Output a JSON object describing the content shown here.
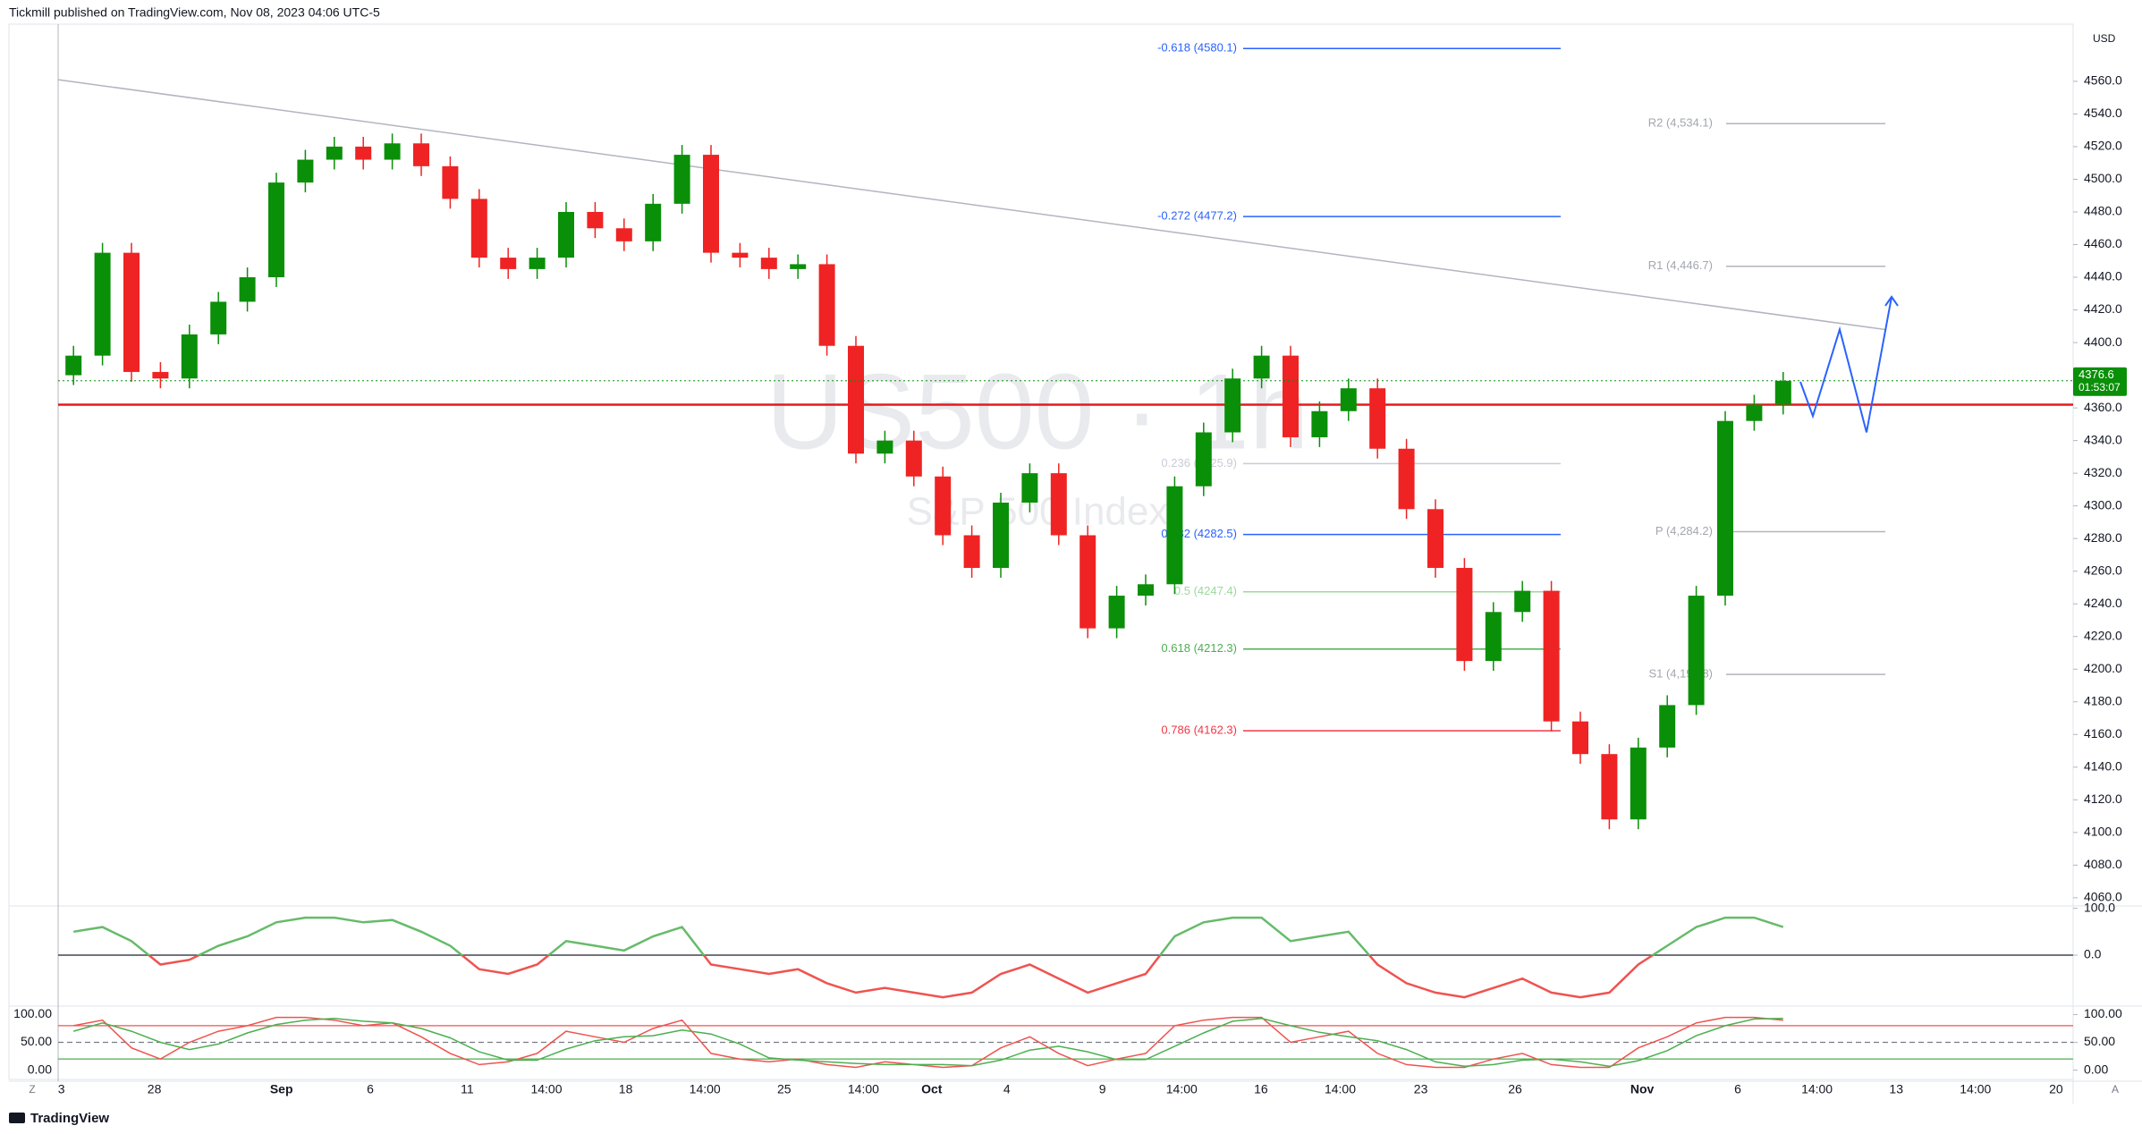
{
  "header": "Tickmill published on TradingView.com, Nov 08, 2023 04:06 UTC-5",
  "footer": {
    "brand": "TradingView",
    "z": "Z",
    "a": "A"
  },
  "chart_data": [
    {
      "type": "candlestick",
      "watermark": "US500 · 1h",
      "watermark_sub": "S&P 500 Index",
      "currency": "USD",
      "up_color": "#0a8f08",
      "down_color": "#ef2323",
      "open": [
        4380,
        4392,
        4455,
        4382,
        4378,
        4405,
        4425,
        4440,
        4498,
        4512,
        4520,
        4512,
        4522,
        4508,
        4488,
        4452,
        4445,
        4452,
        4480,
        4470,
        4462,
        4485,
        4515,
        4455,
        4452,
        4445,
        4448,
        4398,
        4332,
        4340,
        4318,
        4282,
        4262,
        4302,
        4320,
        4282,
        4225,
        4245,
        4252,
        4312,
        4345,
        4378,
        4392,
        4342,
        4358,
        4372,
        4335,
        4298,
        4262,
        4205,
        4235,
        4248,
        4168,
        4148,
        4108,
        4152,
        4178,
        4245,
        4352,
        4362
      ],
      "high": [
        4398,
        4461,
        4461,
        4388,
        4411,
        4431,
        4446,
        4504,
        4518,
        4526,
        4526,
        4528,
        4528,
        4514,
        4494,
        4458,
        4458,
        4486,
        4486,
        4476,
        4491,
        4521,
        4521,
        4461,
        4458,
        4454,
        4454,
        4404,
        4346,
        4346,
        4324,
        4288,
        4308,
        4326,
        4326,
        4288,
        4251,
        4258,
        4318,
        4351,
        4384,
        4398,
        4398,
        4364,
        4378,
        4378,
        4341,
        4304,
        4268,
        4241,
        4254,
        4254,
        4174,
        4154,
        4158,
        4184,
        4251,
        4358,
        4368,
        4382
      ],
      "low": [
        4374,
        4386,
        4376,
        4372,
        4372,
        4399,
        4419,
        4434,
        4492,
        4506,
        4506,
        4506,
        4502,
        4482,
        4446,
        4439,
        4439,
        4446,
        4464,
        4456,
        4456,
        4479,
        4449,
        4446,
        4439,
        4439,
        4392,
        4326,
        4326,
        4312,
        4276,
        4256,
        4256,
        4296,
        4276,
        4219,
        4219,
        4239,
        4246,
        4306,
        4339,
        4372,
        4336,
        4336,
        4352,
        4329,
        4292,
        4256,
        4199,
        4199,
        4229,
        4162,
        4142,
        4102,
        4102,
        4146,
        4172,
        4239,
        4346,
        4356
      ],
      "close": [
        4392,
        4455,
        4382,
        4378,
        4405,
        4425,
        4440,
        4498,
        4512,
        4520,
        4512,
        4522,
        4508,
        4488,
        4452,
        4445,
        4452,
        4480,
        4470,
        4462,
        4485,
        4515,
        4455,
        4452,
        4445,
        4448,
        4398,
        4332,
        4340,
        4318,
        4282,
        4262,
        4302,
        4320,
        4282,
        4225,
        4245,
        4252,
        4312,
        4345,
        4378,
        4392,
        4342,
        4358,
        4372,
        4335,
        4298,
        4262,
        4205,
        4235,
        4248,
        4168,
        4148,
        4108,
        4152,
        4178,
        4245,
        4352,
        4362,
        4376.6
      ],
      "last_price": 4376.6,
      "countdown": "01:53:07",
      "horizontal_line": 4362,
      "trendline": [
        4561,
        4408
      ],
      "projection": [
        4376,
        4355,
        4408,
        4345,
        4428
      ],
      "fib": [
        {
          "value": 4580.1,
          "label": "-0.618 (4580.1)",
          "color": "#2962ff"
        },
        {
          "value": 4477.2,
          "label": "-0.272 (4477.2)",
          "color": "#2962ff"
        },
        {
          "value": 4325.9,
          "label": "0.236 (4325.9)",
          "color": "#c9ccd6"
        },
        {
          "value": 4282.5,
          "label": "0.382 (4282.5)",
          "color": "#2962ff"
        },
        {
          "value": 4247.4,
          "label": "0.5 (4247.4)",
          "color": "#9ed89e"
        },
        {
          "value": 4212.3,
          "label": "0.618 (4212.3)",
          "color": "#4caf50"
        },
        {
          "value": 4162.3,
          "label": "0.786 (4162.3)",
          "color": "#f23645"
        }
      ],
      "pivots": [
        {
          "value": 4534.1,
          "label": "R2 (4,534.1)"
        },
        {
          "value": 4446.7,
          "label": "R1 (4,446.7)"
        },
        {
          "value": 4284.2,
          "label": "P (4,284.2)"
        },
        {
          "value": 4196.8,
          "label": "S1 (4,196.8)"
        }
      ],
      "ylim": [
        4055,
        4595
      ],
      "yticks": [
        {
          "value": 4060,
          "label": "4060.0"
        },
        {
          "value": 4080,
          "label": "4080.0"
        },
        {
          "value": 4100,
          "label": "4100.0"
        },
        {
          "value": 4120,
          "label": "4120.0"
        },
        {
          "value": 4140,
          "label": "4140.0"
        },
        {
          "value": 4160,
          "label": "4160.0"
        },
        {
          "value": 4180,
          "label": "4180.0"
        },
        {
          "value": 4200,
          "label": "4200.0"
        },
        {
          "value": 4220,
          "label": "4220.0"
        },
        {
          "value": 4240,
          "label": "4240.0"
        },
        {
          "value": 4260,
          "label": "4260.0"
        },
        {
          "value": 4280,
          "label": "4280.0"
        },
        {
          "value": 4300,
          "label": "4300.0"
        },
        {
          "value": 4320,
          "label": "4320.0"
        },
        {
          "value": 4340,
          "label": "4340.0"
        },
        {
          "value": 4360,
          "label": "4360.0"
        },
        {
          "value": 4380,
          "label": "4380.0"
        },
        {
          "value": 4400,
          "label": "4400.0"
        },
        {
          "value": 4420,
          "label": "4420.0"
        },
        {
          "value": 4440,
          "label": "4440.0"
        },
        {
          "value": 4460,
          "label": "4460.0"
        },
        {
          "value": 4480,
          "label": "4480.0"
        },
        {
          "value": 4500,
          "label": "4500.0"
        },
        {
          "value": 4520,
          "label": "4520.0"
        },
        {
          "value": 4540,
          "label": "4540.0"
        },
        {
          "value": 4560,
          "label": "4560.0"
        }
      ],
      "grid": false,
      "xtick_labels": [
        "3",
        "28",
        "Sep",
        "6",
        "11",
        "14:00",
        "18",
        "14:00",
        "25",
        "14:00",
        "Oct",
        "4",
        "9",
        "14:00",
        "16",
        "14:00",
        "23",
        "26",
        "Nov",
        "6",
        "14:00",
        "13",
        "14:00",
        "20"
      ]
    },
    {
      "type": "line",
      "color_above": "#66bb6a",
      "color_below": "#ef5350",
      "series": [
        {
          "values": [
            50,
            60,
            30,
            -20,
            -10,
            20,
            40,
            70,
            80,
            80,
            70,
            75,
            50,
            20,
            -30,
            -40,
            -20,
            30,
            20,
            10,
            40,
            60,
            -20,
            -30,
            -40,
            -30,
            -60,
            -80,
            -70,
            -80,
            -90,
            -80,
            -40,
            -20,
            -50,
            -80,
            -60,
            -40,
            40,
            70,
            80,
            80,
            30,
            40,
            50,
            -20,
            -60,
            -80,
            -90,
            -70,
            -50,
            -80,
            -90,
            -80,
            -20,
            20,
            60,
            80,
            80,
            60
          ]
        }
      ],
      "ylim": [
        -105,
        105
      ],
      "yticks": [
        {
          "value": 100,
          "label": "100.0"
        },
        {
          "value": 0,
          "label": "0.0"
        }
      ]
    },
    {
      "type": "line",
      "series": [
        {
          "color": "#ef5350",
          "values": [
            80,
            90,
            40,
            20,
            50,
            70,
            80,
            95,
            95,
            90,
            80,
            85,
            60,
            30,
            10,
            15,
            30,
            70,
            60,
            50,
            75,
            90,
            30,
            20,
            15,
            20,
            10,
            5,
            15,
            10,
            5,
            8,
            40,
            60,
            30,
            8,
            20,
            30,
            80,
            90,
            95,
            95,
            50,
            60,
            70,
            30,
            10,
            5,
            5,
            20,
            30,
            10,
            5,
            5,
            40,
            60,
            85,
            95,
            95,
            90
          ]
        },
        {
          "color": "#4caf50",
          "values": [
            70,
            85,
            70,
            50,
            37,
            47,
            67,
            82,
            90,
            93,
            88,
            85,
            75,
            58,
            33,
            18,
            18,
            38,
            53,
            60,
            62,
            72,
            65,
            47,
            22,
            18,
            15,
            12,
            10,
            10,
            10,
            8,
            18,
            36,
            43,
            33,
            19,
            19,
            43,
            67,
            88,
            93,
            80,
            68,
            60,
            53,
            37,
            15,
            7,
            10,
            18,
            20,
            15,
            7,
            17,
            35,
            62,
            80,
            92,
            93
          ]
        }
      ],
      "levels": [
        80,
        50,
        20
      ],
      "ylim": [
        -20,
        112
      ],
      "yticks": [
        {
          "value": 100,
          "label": "100.00"
        },
        {
          "value": 50,
          "label": "50.00"
        },
        {
          "value": 0,
          "label": "0.00"
        }
      ]
    }
  ]
}
